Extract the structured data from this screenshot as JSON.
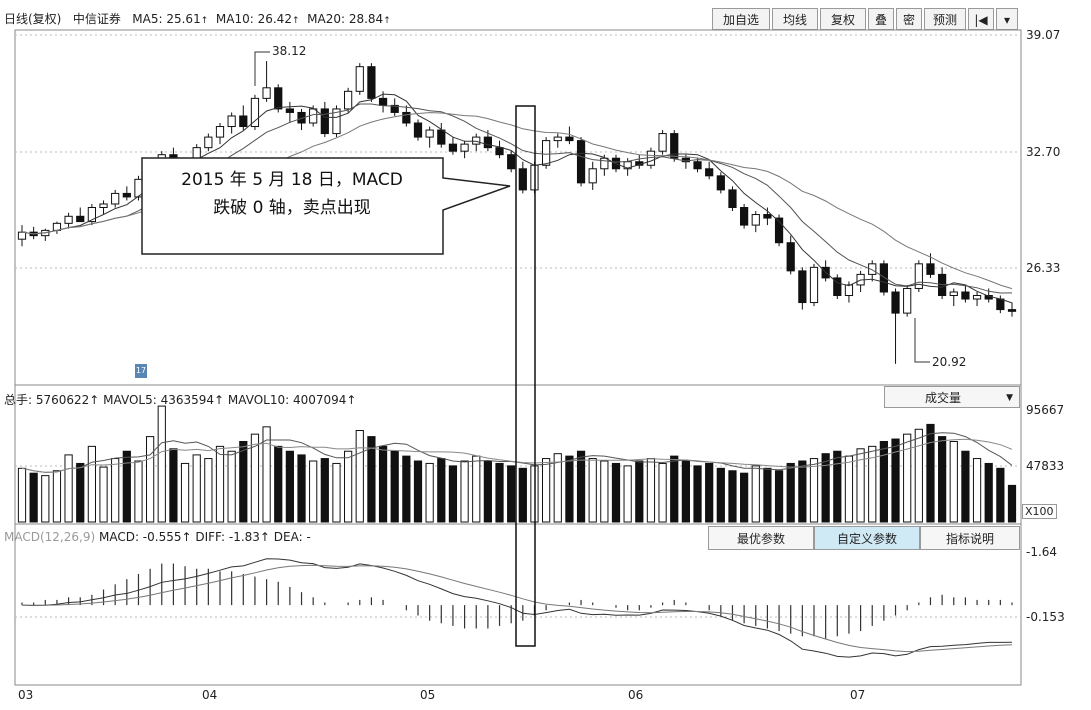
{
  "header": {
    "title": "日线(复权)",
    "broker": "中信证券",
    "ma": [
      {
        "label": "MA5: 25.61",
        "arrow": "↑",
        "color": "#333333"
      },
      {
        "label": "MA10: 26.42",
        "arrow": "↑",
        "color": "#333333"
      },
      {
        "label": "MA20: 28.84",
        "arrow": "↑",
        "color": "#333333"
      }
    ]
  },
  "toolbar": {
    "buttons": [
      "加自选",
      "均线",
      "复权",
      "叠",
      "密",
      "预测",
      "|◀",
      "▾"
    ]
  },
  "price_axis": [
    "39.07",
    "32.70",
    "26.33"
  ],
  "annotations": {
    "high_label": "38.12",
    "low_label": "20.92",
    "callout_line1": "2015 年 5 月 18 日，MACD",
    "callout_line2": "跌破 0 轴，卖点出现",
    "small_marker": "17"
  },
  "volume_panel": {
    "info": "总手: 5760622↑ MAVOL5: 4363594↑ MAVOL10: 4007094↑",
    "dropdown_label": "成交量",
    "axis": [
      "95667",
      "47833"
    ],
    "unit": "X100"
  },
  "macd_panel": {
    "info_prefix": "MACD(12,26,9)",
    "info": "MACD: -0.555↑ DIFF: -1.83↑ DEA: -",
    "buttons": [
      "最优参数",
      "自定义参数",
      "指标说明"
    ],
    "axis": [
      "1.64",
      "0.153"
    ]
  },
  "x_axis": [
    "03",
    "04",
    "05",
    "06",
    "07"
  ],
  "chart_data": {
    "type": "candlestick",
    "ohlc": [
      [
        28.0,
        28.8,
        27.6,
        28.4
      ],
      [
        28.4,
        28.7,
        28.0,
        28.2
      ],
      [
        28.2,
        28.6,
        27.9,
        28.5
      ],
      [
        28.5,
        29.0,
        28.3,
        28.9
      ],
      [
        28.9,
        29.5,
        28.6,
        29.3
      ],
      [
        29.3,
        29.8,
        29.0,
        29.0
      ],
      [
        29.0,
        30.0,
        28.8,
        29.8
      ],
      [
        29.8,
        30.2,
        29.4,
        30.0
      ],
      [
        30.0,
        30.8,
        29.8,
        30.6
      ],
      [
        30.6,
        31.0,
        30.2,
        30.4
      ],
      [
        30.4,
        31.6,
        30.2,
        31.4
      ],
      [
        31.4,
        32.2,
        31.2,
        32.0
      ],
      [
        32.0,
        33.0,
        31.6,
        32.8
      ],
      [
        32.8,
        33.2,
        31.8,
        32.2
      ],
      [
        32.2,
        32.6,
        31.6,
        32.4
      ],
      [
        32.4,
        33.4,
        32.2,
        33.2
      ],
      [
        33.2,
        34.0,
        33.0,
        33.8
      ],
      [
        33.8,
        34.6,
        33.4,
        34.4
      ],
      [
        34.4,
        35.2,
        34.0,
        35.0
      ],
      [
        35.0,
        35.6,
        34.2,
        34.4
      ],
      [
        34.4,
        36.2,
        34.2,
        36.0
      ],
      [
        36.0,
        38.12,
        35.8,
        36.6
      ],
      [
        36.6,
        36.8,
        35.2,
        35.4
      ],
      [
        35.4,
        35.8,
        34.6,
        35.2
      ],
      [
        35.2,
        35.4,
        34.2,
        34.6
      ],
      [
        34.6,
        35.6,
        34.4,
        35.4
      ],
      [
        35.4,
        35.8,
        33.8,
        34.0
      ],
      [
        34.0,
        35.6,
        33.8,
        35.4
      ],
      [
        35.4,
        36.6,
        35.2,
        36.4
      ],
      [
        36.4,
        38.0,
        36.2,
        37.8
      ],
      [
        37.8,
        38.0,
        35.8,
        36.0
      ],
      [
        36.0,
        36.4,
        35.2,
        35.6
      ],
      [
        35.6,
        36.0,
        35.0,
        35.2
      ],
      [
        35.2,
        35.6,
        34.4,
        34.6
      ],
      [
        34.6,
        34.8,
        33.6,
        33.8
      ],
      [
        33.8,
        34.4,
        33.2,
        34.2
      ],
      [
        34.2,
        34.6,
        33.2,
        33.4
      ],
      [
        33.4,
        33.8,
        32.8,
        33.0
      ],
      [
        33.0,
        33.6,
        32.6,
        33.4
      ],
      [
        33.4,
        34.0,
        33.0,
        33.8
      ],
      [
        33.8,
        34.2,
        33.0,
        33.2
      ],
      [
        33.2,
        33.6,
        32.6,
        32.8
      ],
      [
        32.8,
        33.0,
        31.8,
        32.0
      ],
      [
        32.0,
        32.4,
        30.6,
        30.8
      ],
      [
        30.8,
        32.4,
        30.6,
        32.2
      ],
      [
        32.2,
        33.8,
        32.0,
        33.6
      ],
      [
        33.6,
        34.0,
        33.2,
        33.8
      ],
      [
        33.8,
        34.4,
        33.4,
        33.6
      ],
      [
        33.6,
        33.8,
        31.0,
        31.2
      ],
      [
        31.2,
        32.4,
        30.8,
        32.0
      ],
      [
        32.0,
        32.8,
        31.6,
        32.6
      ],
      [
        32.6,
        32.8,
        31.8,
        32.0
      ],
      [
        32.0,
        32.6,
        31.6,
        32.4
      ],
      [
        32.4,
        32.8,
        32.0,
        32.2
      ],
      [
        32.2,
        33.2,
        32.0,
        33.0
      ],
      [
        33.0,
        34.2,
        32.8,
        34.0
      ],
      [
        34.0,
        34.2,
        32.4,
        32.6
      ],
      [
        32.6,
        32.8,
        32.0,
        32.4
      ],
      [
        32.4,
        32.6,
        31.8,
        32.0
      ],
      [
        32.0,
        32.4,
        31.4,
        31.6
      ],
      [
        31.6,
        31.8,
        30.6,
        30.8
      ],
      [
        30.8,
        31.0,
        29.6,
        29.8
      ],
      [
        29.8,
        30.0,
        28.6,
        28.8
      ],
      [
        28.8,
        29.6,
        28.4,
        29.4
      ],
      [
        29.4,
        29.8,
        28.8,
        29.2
      ],
      [
        29.2,
        29.4,
        27.6,
        27.8
      ],
      [
        27.8,
        28.2,
        26.0,
        26.2
      ],
      [
        26.2,
        26.4,
        24.0,
        24.4
      ],
      [
        24.4,
        26.6,
        24.2,
        26.4
      ],
      [
        26.4,
        26.8,
        25.6,
        25.8
      ],
      [
        25.8,
        26.0,
        24.6,
        24.8
      ],
      [
        24.8,
        25.6,
        24.4,
        25.4
      ],
      [
        25.4,
        26.2,
        25.0,
        26.0
      ],
      [
        26.0,
        26.8,
        25.6,
        26.6
      ],
      [
        26.6,
        26.8,
        24.8,
        25.0
      ],
      [
        25.0,
        25.2,
        20.92,
        23.8
      ],
      [
        23.8,
        25.4,
        23.6,
        25.2
      ],
      [
        25.2,
        26.8,
        25.0,
        26.6
      ],
      [
        26.6,
        27.2,
        25.8,
        26.0
      ],
      [
        26.0,
        26.4,
        24.6,
        24.8
      ],
      [
        24.8,
        25.2,
        24.2,
        25.0
      ],
      [
        25.0,
        25.4,
        24.4,
        24.6
      ],
      [
        24.6,
        25.0,
        24.2,
        24.8
      ],
      [
        24.8,
        25.2,
        24.4,
        24.6
      ],
      [
        24.6,
        24.8,
        23.8,
        24.0
      ],
      [
        24.0,
        24.4,
        23.6,
        23.9
      ]
    ],
    "volume": [
      44,
      40,
      38,
      42,
      55,
      48,
      62,
      45,
      52,
      58,
      50,
      70,
      95,
      60,
      48,
      55,
      52,
      62,
      58,
      66,
      72,
      78,
      62,
      58,
      55,
      50,
      52,
      48,
      58,
      75,
      70,
      62,
      58,
      54,
      50,
      48,
      52,
      46,
      50,
      54,
      50,
      48,
      46,
      44,
      46,
      52,
      56,
      54,
      58,
      52,
      50,
      48,
      46,
      50,
      52,
      48,
      54,
      50,
      46,
      48,
      44,
      42,
      40,
      46,
      44,
      42,
      48,
      50,
      52,
      56,
      58,
      54,
      60,
      62,
      66,
      68,
      72,
      76,
      80,
      70,
      66,
      58,
      52,
      48,
      44,
      30
    ],
    "macd_hist": [
      0.1,
      0.1,
      0.2,
      0.2,
      0.3,
      0.3,
      0.4,
      0.6,
      0.8,
      1.0,
      1.2,
      1.4,
      1.6,
      1.6,
      1.5,
      1.4,
      1.4,
      1.3,
      1.3,
      1.2,
      1.1,
      1.0,
      0.9,
      0.7,
      0.5,
      0.3,
      0.1,
      0.0,
      0.1,
      0.2,
      0.3,
      0.2,
      0.0,
      -0.2,
      -0.4,
      -0.6,
      -0.7,
      -0.8,
      -0.9,
      -0.9,
      -0.9,
      -0.8,
      -0.7,
      -0.6,
      -0.4,
      -0.2,
      0.0,
      0.1,
      0.2,
      0.1,
      0.0,
      -0.1,
      -0.2,
      -0.2,
      -0.1,
      0.1,
      0.2,
      0.1,
      0.0,
      -0.2,
      -0.4,
      -0.6,
      -0.7,
      -0.8,
      -0.9,
      -1.0,
      -1.1,
      -1.2,
      -1.2,
      -1.3,
      -1.2,
      -1.1,
      -1.0,
      -0.8,
      -0.6,
      -0.4,
      -0.2,
      0.1,
      0.3,
      0.4,
      0.3,
      0.3,
      0.2,
      0.2,
      0.2,
      0.1
    ],
    "price_range": [
      20.0,
      39.6
    ],
    "volume_range": [
      0,
      100
    ],
    "macd_range": [
      -3.0,
      2.2
    ]
  }
}
